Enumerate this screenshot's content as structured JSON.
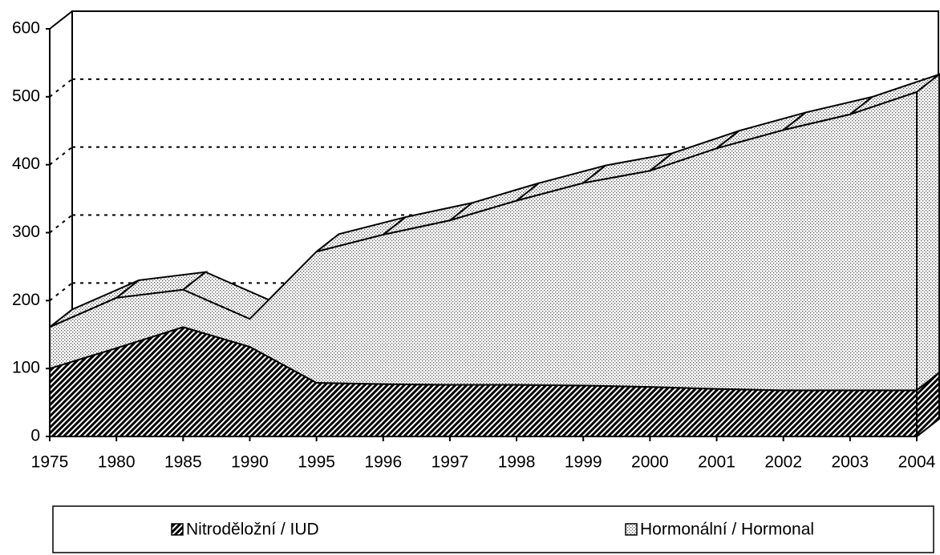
{
  "chart_data": {
    "type": "area",
    "categories": [
      "1975",
      "1980",
      "1985",
      "1990",
      "1995",
      "1996",
      "1997",
      "1998",
      "1999",
      "2000",
      "2001",
      "2002",
      "2003",
      "2004"
    ],
    "series": [
      {
        "name": "Nitroděložní / IUD",
        "color": "#000000",
        "pattern": "hatch",
        "values": [
          100,
          130,
          161,
          132,
          79,
          77,
          76,
          76,
          75,
          73,
          70,
          68,
          68,
          68
        ]
      },
      {
        "name": "Hormonální / Hormonal",
        "color": "#000000",
        "pattern": "dots",
        "values": [
          61,
          74,
          55,
          41,
          193,
          220,
          242,
          271,
          298,
          318,
          354,
          383,
          406,
          439
        ]
      }
    ],
    "stacked": true,
    "ylim": [
      0,
      600
    ],
    "yticks": [
      0,
      100,
      200,
      300,
      400,
      500,
      600
    ],
    "grid": true
  }
}
